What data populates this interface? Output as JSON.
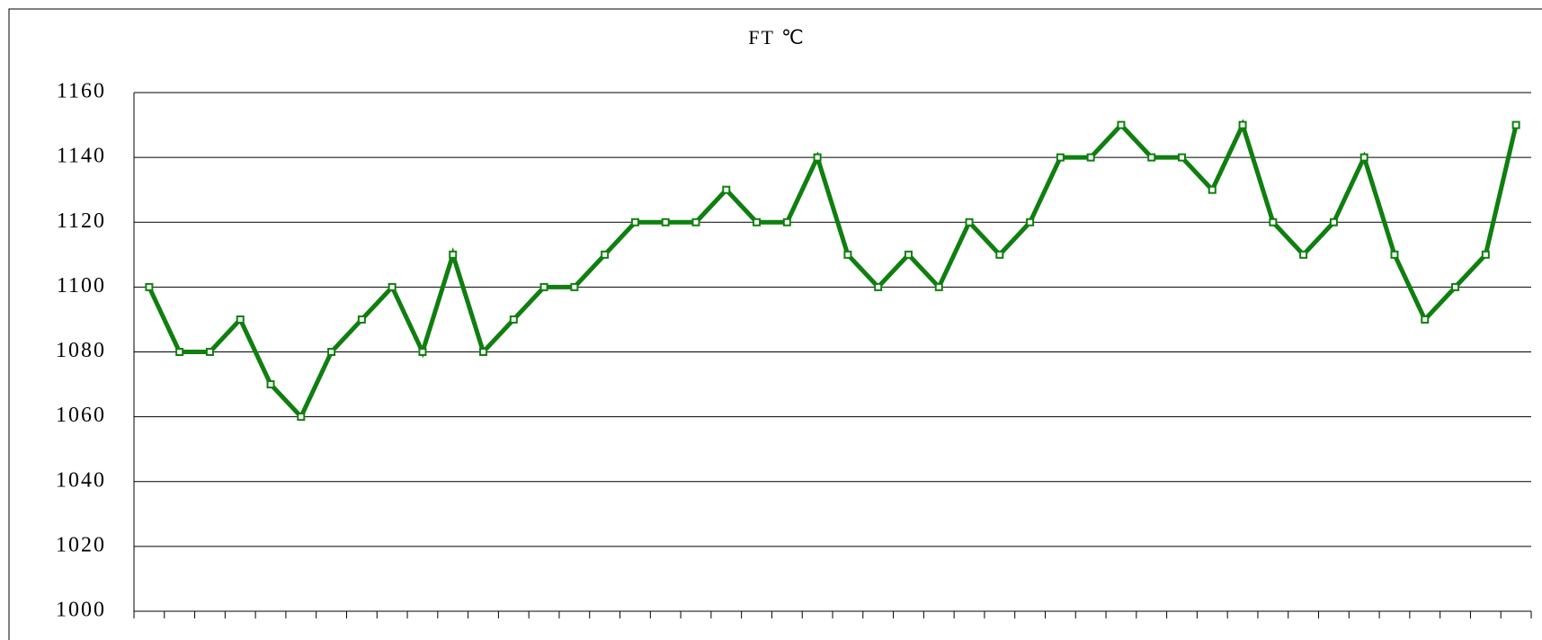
{
  "chart_data": {
    "type": "line",
    "title": "FT ℃",
    "categories": [
      null,
      null,
      null,
      null,
      null,
      null,
      null,
      null,
      null,
      null,
      null,
      null,
      null,
      null,
      null,
      null,
      null,
      null,
      null,
      null,
      null,
      null,
      null,
      null,
      null,
      null,
      null,
      null,
      null,
      null,
      null,
      null,
      null,
      null,
      null,
      null,
      null,
      null,
      null,
      null,
      null,
      null,
      null,
      null,
      null,
      null
    ],
    "series": [
      {
        "name": "FT",
        "color": "#0f7f0f",
        "values": [
          1100,
          1080,
          1080,
          1090,
          1070,
          1060,
          1080,
          1090,
          1100,
          1080,
          1110,
          1080,
          1090,
          1100,
          1100,
          1110,
          1120,
          1120,
          1120,
          1130,
          1120,
          1120,
          1140,
          1110,
          1100,
          1110,
          1100,
          1120,
          1110,
          1120,
          1140,
          1140,
          1150,
          1140,
          1140,
          1130,
          1150,
          1120,
          1110,
          1120,
          1140,
          1110,
          1090,
          1100,
          1110,
          1150
        ]
      }
    ],
    "ylim": [
      1000,
      1160
    ],
    "yticks": [
      1000,
      1020,
      1040,
      1060,
      1080,
      1100,
      1120,
      1140,
      1160
    ],
    "grid": true
  }
}
